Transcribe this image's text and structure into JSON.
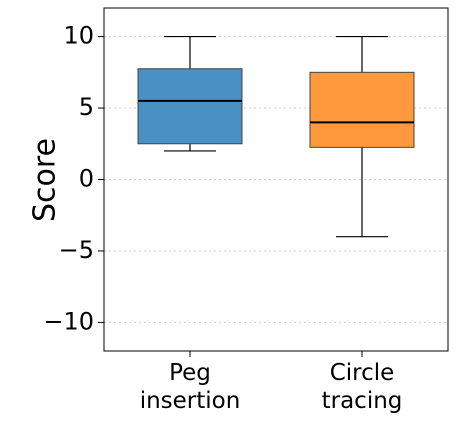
{
  "chart_data": {
    "type": "box",
    "title": "",
    "xlabel": "",
    "ylabel": "Score",
    "ylim": [
      -12,
      12
    ],
    "yticks": [
      10,
      5,
      0,
      -5,
      -10
    ],
    "ytick_labels": [
      "10",
      "5",
      "0",
      "−5",
      "−10"
    ],
    "grid": "horizontal dotted",
    "categories": [
      {
        "lines": [
          "Peg",
          "insertion"
        ]
      },
      {
        "lines": [
          "Circle",
          "tracing"
        ]
      }
    ],
    "boxes": [
      {
        "whisker_low": 2,
        "q1": 2.5,
        "median": 5.5,
        "q3": 7.75,
        "whisker_high": 10,
        "color": "#4a90c4"
      },
      {
        "whisker_low": -4,
        "q1": 2.25,
        "median": 4,
        "q3": 7.5,
        "whisker_high": 10,
        "color": "#ff993d"
      }
    ]
  }
}
